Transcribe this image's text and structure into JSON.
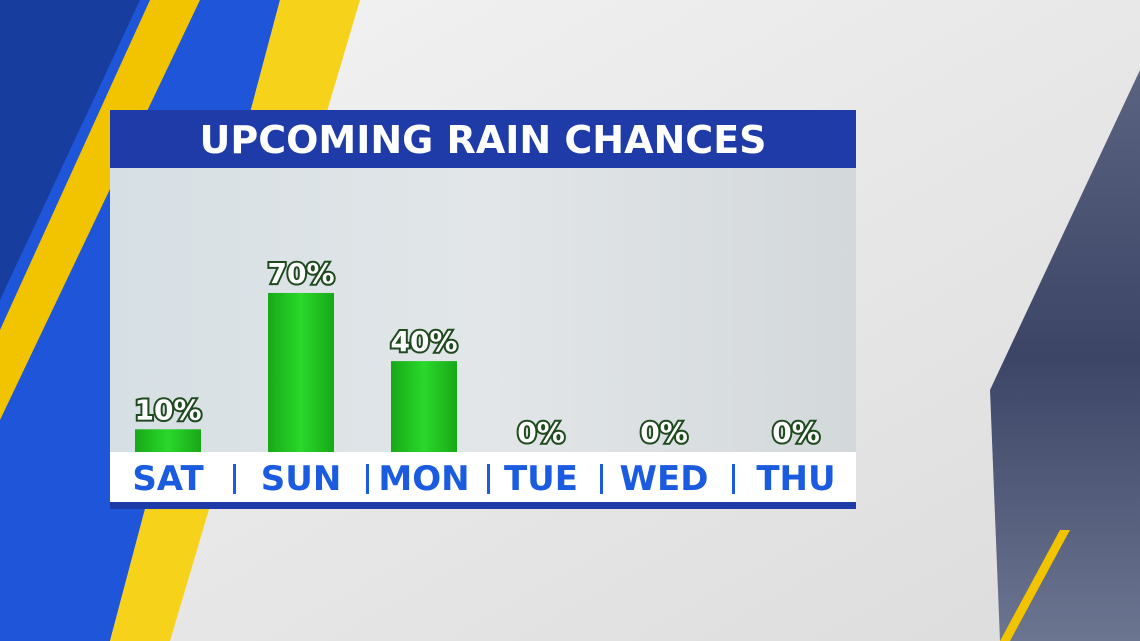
{
  "chart_data": {
    "type": "bar",
    "title": "UPCOMING RAIN CHANCES",
    "categories": [
      "SAT",
      "SUN",
      "MON",
      "TUE",
      "WED",
      "THU"
    ],
    "values": [
      10,
      70,
      40,
      0,
      0,
      0
    ],
    "value_labels": [
      "10%",
      "70%",
      "40%",
      "0%",
      "0%",
      "0%"
    ],
    "color": "#22c422",
    "ylim": [
      0,
      125
    ]
  }
}
